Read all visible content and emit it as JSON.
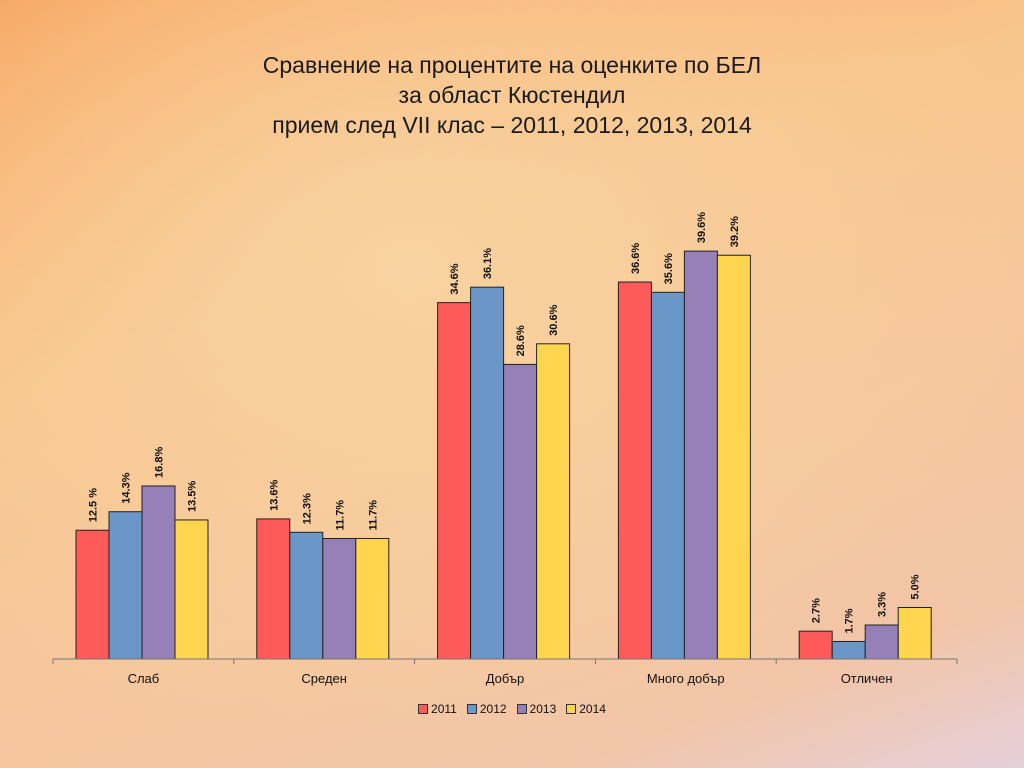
{
  "chart_data": {
    "type": "bar",
    "title": [
      "Сравнение на процентите на оценките по БЕЛ",
      "за област Кюстендил",
      "прием след VII клас – 2011, 2012, 2013, 2014"
    ],
    "xlabel": "",
    "ylabel": "",
    "ylim": [
      0,
      44
    ],
    "grid": false,
    "legend_position": "bottom",
    "categories": [
      "Слаб",
      "Среден",
      "Добър",
      "Много добър",
      "Отличен"
    ],
    "series": [
      {
        "name": "2011",
        "color": "#ff5a5a",
        "values": [
          12.5,
          13.6,
          34.6,
          36.6,
          2.7
        ],
        "labels": [
          "12.5 %",
          "13.6%",
          "34.6%",
          "36.6%",
          "2.7%"
        ]
      },
      {
        "name": "2012",
        "color": "#6a96c8",
        "values": [
          14.3,
          12.3,
          36.1,
          35.6,
          1.7
        ],
        "labels": [
          "14.3%",
          "12.3%",
          "36.1%",
          "35.6%",
          "1.7%"
        ]
      },
      {
        "name": "2013",
        "color": "#9580b8",
        "values": [
          16.8,
          11.7,
          28.6,
          39.6,
          3.3
        ],
        "labels": [
          "16.8%",
          "11.7%",
          "28.6%",
          "39.6%",
          "3.3%"
        ]
      },
      {
        "name": "2014",
        "color": "#ffd44f",
        "values": [
          13.5,
          11.7,
          30.6,
          39.2,
          5.0
        ],
        "labels": [
          "13.5%",
          "11.7%",
          "30.6%",
          "39.2%",
          "5.0%"
        ]
      }
    ]
  }
}
